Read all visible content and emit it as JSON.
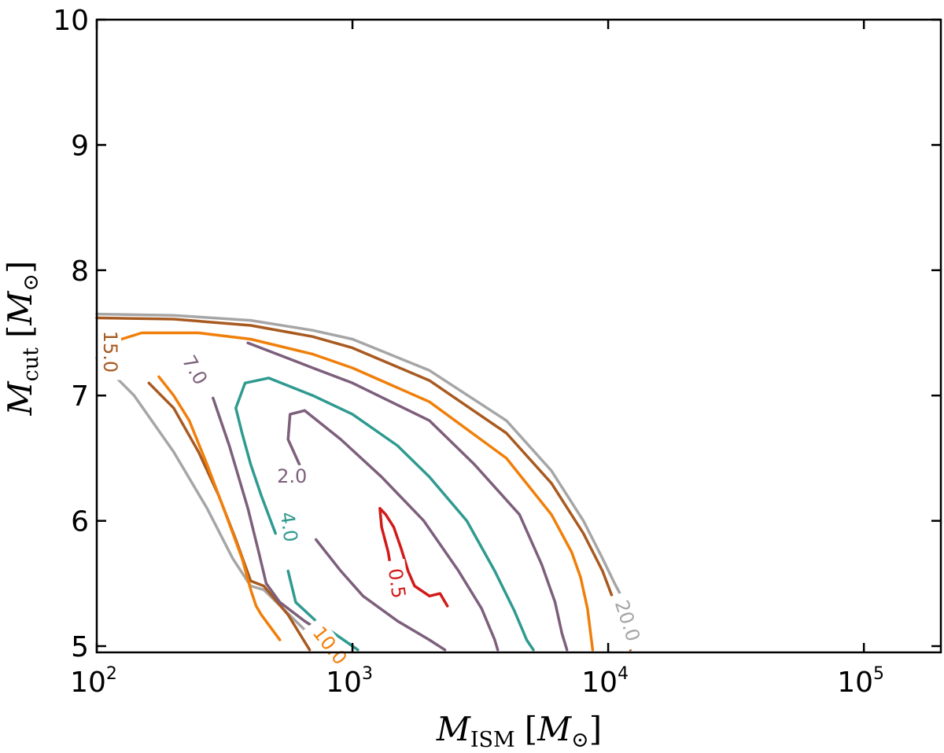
{
  "chart_data": {
    "type": "contour",
    "title": "",
    "xlabel": {
      "main": "M",
      "sub": "ISM",
      "unit": "M",
      "unit_sub": "⊙"
    },
    "ylabel": {
      "main": "M",
      "sub": "cut",
      "unit": "M",
      "unit_sub": "⊙"
    },
    "xscale": "log",
    "xlim": [
      100,
      200000
    ],
    "ylim": [
      4.95,
      10.0
    ],
    "x_ticks": [
      {
        "value": 100,
        "base": "10",
        "exp": "2"
      },
      {
        "value": 1000,
        "base": "10",
        "exp": "3"
      },
      {
        "value": 10000,
        "base": "10",
        "exp": "4"
      },
      {
        "value": 100000,
        "base": "10",
        "exp": "5"
      }
    ],
    "y_ticks": [
      {
        "value": 5,
        "label": "5"
      },
      {
        "value": 6,
        "label": "6"
      },
      {
        "value": 7,
        "label": "7"
      },
      {
        "value": 8,
        "label": "8"
      },
      {
        "value": 9,
        "label": "9"
      },
      {
        "value": 10,
        "label": "10"
      }
    ],
    "contours": [
      {
        "level": "20.0",
        "color": "#a6a6a6",
        "label_at": [
          11800,
          5.2
        ],
        "label_rot": 72,
        "segments": [
          [
            [
              100,
              7.3
            ],
            [
              140,
              7.0
            ],
            [
              200,
              6.55
            ],
            [
              270,
              6.1
            ],
            [
              340,
              5.7
            ],
            [
              400,
              5.48
            ],
            [
              450,
              5.45
            ],
            [
              600,
              5.2
            ],
            [
              780,
              4.97
            ]
          ],
          [
            [
              100,
              7.65
            ],
            [
              200,
              7.64
            ],
            [
              400,
              7.6
            ],
            [
              700,
              7.52
            ],
            [
              1000,
              7.45
            ],
            [
              2000,
              7.2
            ],
            [
              4000,
              6.8
            ],
            [
              6000,
              6.4
            ],
            [
              8000,
              6.0
            ],
            [
              9500,
              5.7
            ],
            [
              10600,
              5.5
            ],
            [
              11400,
              5.38
            ]
          ]
        ]
      },
      {
        "level": "15.0",
        "color": "#a85a20",
        "label_at": [
          112,
          7.35
        ],
        "label_rot": 90,
        "segments": [
          [
            [
              100,
              7.62
            ],
            [
              200,
              7.61
            ],
            [
              400,
              7.56
            ],
            [
              700,
              7.47
            ],
            [
              1000,
              7.38
            ],
            [
              2000,
              7.12
            ],
            [
              4000,
              6.7
            ],
            [
              6000,
              6.3
            ],
            [
              8000,
              5.9
            ],
            [
              9500,
              5.6
            ],
            [
              10800,
              5.3
            ],
            [
              11700,
              5.1
            ],
            [
              12200,
              4.97
            ]
          ],
          [
            [
              160,
              7.1
            ],
            [
              200,
              6.9
            ],
            [
              250,
              6.55
            ],
            [
              300,
              6.2
            ],
            [
              350,
              5.85
            ],
            [
              400,
              5.52
            ],
            [
              450,
              5.48
            ],
            [
              560,
              5.25
            ],
            [
              680,
              4.97
            ]
          ]
        ]
      },
      {
        "level": "10.0",
        "color": "#f07f0a",
        "label_at": [
          810,
          5.0
        ],
        "label_rot": 52,
        "segments": [
          [
            [
              125,
              7.45
            ],
            [
              150,
              7.5
            ],
            [
              250,
              7.5
            ],
            [
              400,
              7.45
            ],
            [
              700,
              7.33
            ],
            [
              1000,
              7.22
            ],
            [
              2000,
              6.95
            ],
            [
              4000,
              6.5
            ],
            [
              6000,
              6.05
            ],
            [
              7200,
              5.75
            ],
            [
              7800,
              5.55
            ],
            [
              8300,
              5.3
            ],
            [
              8700,
              4.97
            ]
          ],
          [
            [
              520,
              5.05
            ],
            [
              440,
              5.25
            ],
            [
              420,
              5.32
            ],
            [
              400,
              5.45
            ],
            [
              370,
              5.7
            ],
            [
              320,
              6.05
            ],
            [
              270,
              6.45
            ],
            [
              230,
              6.8
            ],
            [
              200,
              7.0
            ],
            [
              175,
              7.15
            ]
          ]
        ]
      },
      {
        "level": "7.0",
        "color": "#7d5f7c",
        "label_at": [
          240,
          7.2
        ],
        "label_rot": 60,
        "segments": [
          [
            [
              390,
              7.42
            ],
            [
              700,
              7.22
            ],
            [
              1000,
              7.1
            ],
            [
              2000,
              6.8
            ],
            [
              3000,
              6.45
            ],
            [
              4500,
              6.05
            ],
            [
              5500,
              5.65
            ],
            [
              6200,
              5.35
            ],
            [
              6600,
              5.1
            ],
            [
              6900,
              4.97
            ]
          ],
          [
            [
              285,
              6.98
            ],
            [
              330,
              6.6
            ],
            [
              390,
              6.1
            ],
            [
              430,
              5.75
            ],
            [
              460,
              5.5
            ],
            [
              520,
              5.35
            ],
            [
              650,
              5.2
            ],
            [
              800,
              5.08
            ],
            [
              930,
              4.97
            ]
          ]
        ]
      },
      {
        "level": "4.0",
        "color": "#2f9a90",
        "label_at": [
          560,
          5.95
        ],
        "label_rot": 82,
        "segments": [
          [
            [
              500,
              5.9
            ],
            [
              440,
              6.2
            ],
            [
              400,
              6.45
            ],
            [
              370,
              6.7
            ],
            [
              350,
              6.9
            ],
            [
              380,
              7.1
            ],
            [
              470,
              7.14
            ],
            [
              700,
              7.0
            ],
            [
              1000,
              6.85
            ],
            [
              1500,
              6.6
            ],
            [
              2000,
              6.35
            ],
            [
              2800,
              6.0
            ],
            [
              3600,
              5.6
            ],
            [
              4300,
              5.28
            ],
            [
              4800,
              5.05
            ],
            [
              5100,
              4.97
            ]
          ],
          [
            [
              560,
              5.6
            ],
            [
              600,
              5.35
            ],
            [
              720,
              5.2
            ],
            [
              850,
              5.1
            ],
            [
              1000,
              5.0
            ],
            [
              1050,
              4.97
            ]
          ]
        ]
      },
      {
        "level": "2.0",
        "color": "#7d5f7c",
        "label_at": [
          580,
          6.35
        ],
        "label_rot": 0,
        "segments": [
          [
            [
              620,
              6.45
            ],
            [
              560,
              6.65
            ],
            [
              570,
              6.85
            ],
            [
              650,
              6.88
            ],
            [
              900,
              6.65
            ],
            [
              1300,
              6.35
            ],
            [
              1900,
              6.0
            ],
            [
              2600,
              5.6
            ],
            [
              3200,
              5.3
            ],
            [
              3600,
              5.05
            ],
            [
              3700,
              4.97
            ]
          ],
          [
            [
              720,
              5.85
            ],
            [
              900,
              5.6
            ],
            [
              1100,
              5.4
            ],
            [
              1500,
              5.2
            ],
            [
              2000,
              5.05
            ],
            [
              2300,
              4.97
            ]
          ]
        ]
      },
      {
        "level": "0.5",
        "color": "#d11a1a",
        "label_at": [
          1480,
          5.5
        ],
        "label_rot": 82,
        "segments": [
          [
            [
              1430,
              5.55
            ],
            [
              1380,
              5.75
            ],
            [
              1300,
              5.95
            ],
            [
              1280,
              6.1
            ],
            [
              1350,
              6.05
            ],
            [
              1450,
              5.95
            ],
            [
              1550,
              5.78
            ],
            [
              1650,
              5.6
            ],
            [
              1750,
              5.48
            ],
            [
              2000,
              5.4
            ],
            [
              2200,
              5.42
            ],
            [
              2350,
              5.32
            ]
          ]
        ]
      }
    ]
  }
}
